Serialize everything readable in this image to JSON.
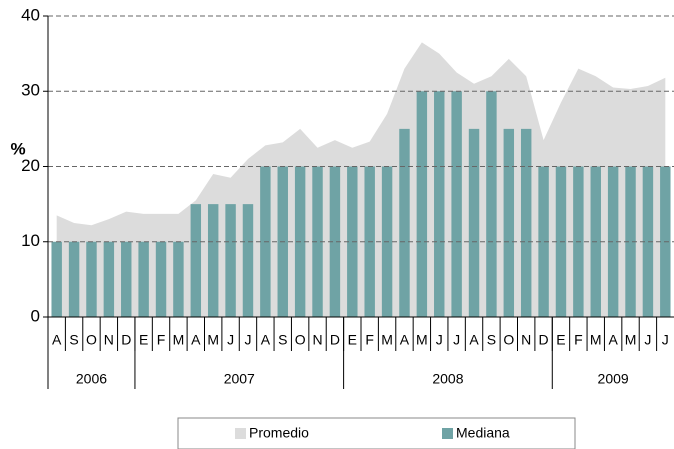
{
  "chart_data": {
    "type": "bar",
    "y_label": "%",
    "categories": [
      "A",
      "S",
      "O",
      "N",
      "D",
      "E",
      "F",
      "M",
      "A",
      "M",
      "J",
      "J",
      "A",
      "S",
      "O",
      "N",
      "D",
      "E",
      "F",
      "M",
      "A",
      "M",
      "J",
      "J",
      "A",
      "S",
      "O",
      "N",
      "D",
      "E",
      "F",
      "M",
      "A",
      "M",
      "J",
      "J"
    ],
    "groups": [
      "2006",
      "2007",
      "2008",
      "2009"
    ],
    "series": [
      {
        "name": "Promedio",
        "type": "area",
        "color": "#dcdcdc",
        "values": [
          13.5,
          12.5,
          12.2,
          13,
          14,
          13.7,
          13.7,
          13.7,
          15.5,
          19,
          18.5,
          21,
          22.8,
          23.2,
          25,
          22.5,
          23.5,
          22.5,
          23.3,
          27,
          33,
          36.5,
          35,
          32.5,
          31,
          32,
          34.3,
          32,
          23.5,
          28.5,
          33,
          32,
          30.5,
          30.3,
          30.7,
          31.8
        ]
      },
      {
        "name": "Mediana",
        "type": "bar",
        "color": "#6fa3a5",
        "values": [
          10,
          10,
          10,
          10,
          10,
          10,
          10,
          10,
          15,
          15,
          15,
          15,
          20,
          20,
          20,
          20,
          20,
          20,
          20,
          20,
          25,
          30,
          30,
          30,
          25,
          30,
          25,
          25,
          20,
          20,
          20,
          20,
          20,
          20,
          20,
          20
        ]
      }
    ],
    "ylim": [
      0,
      40
    ],
    "yticks": [
      0,
      10,
      20,
      30,
      40
    ],
    "grid": true
  }
}
